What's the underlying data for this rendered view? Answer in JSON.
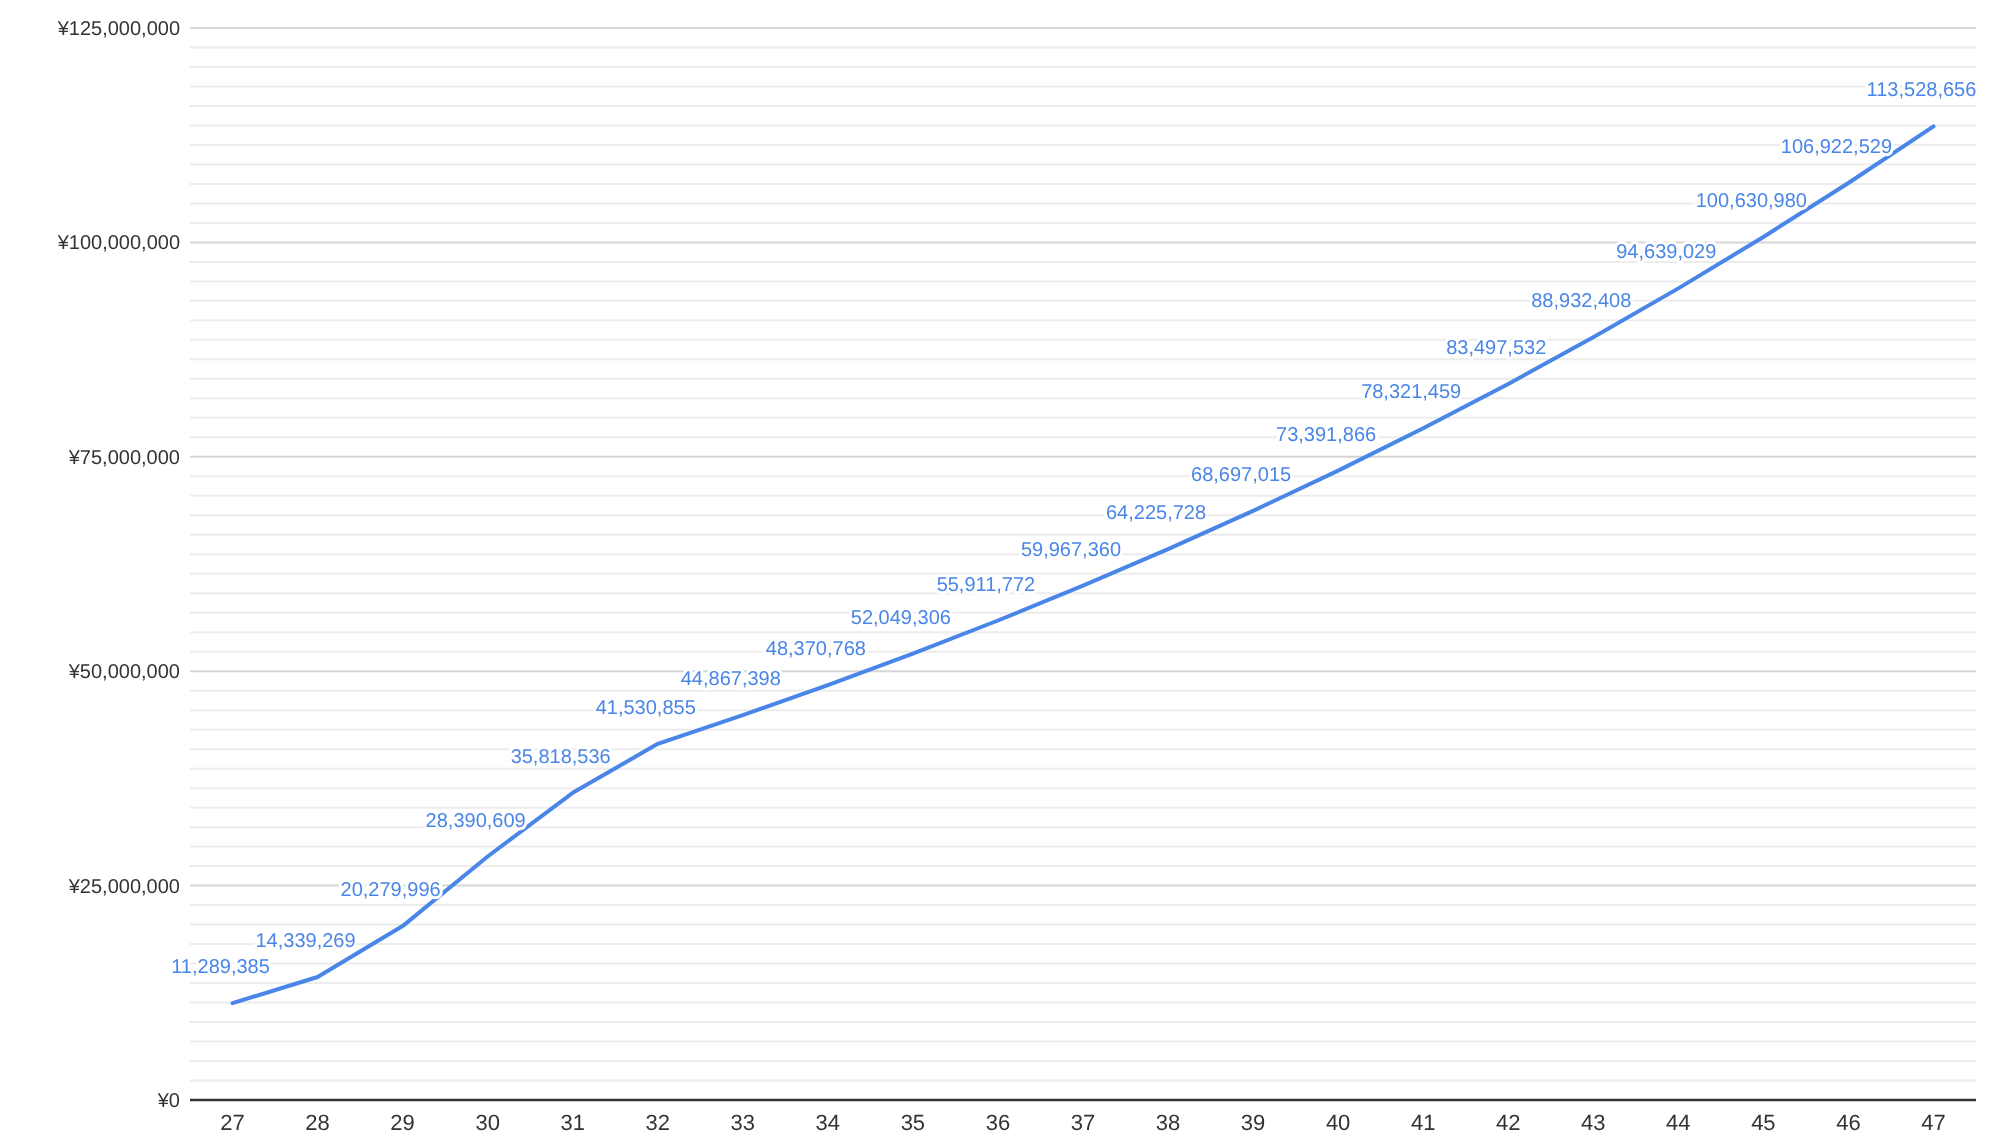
{
  "chart_data": {
    "type": "line",
    "categories": [
      "27",
      "28",
      "29",
      "30",
      "31",
      "32",
      "33",
      "34",
      "35",
      "36",
      "37",
      "38",
      "39",
      "40",
      "41",
      "42",
      "43",
      "44",
      "45",
      "46",
      "47"
    ],
    "series": [
      {
        "color": "#4a86e8",
        "values": [
          11289385,
          14339269,
          20279996,
          28390609,
          35818536,
          41530855,
          44867398,
          48370768,
          52049306,
          55911772,
          59967360,
          64225728,
          68697015,
          73391866,
          78321459,
          83497532,
          88932408,
          94639029,
          100630980,
          106922529,
          113528656
        ],
        "value_labels": [
          "11,289,385",
          "14,339,269",
          "20,279,996",
          "28,390,609",
          "35,818,536",
          "41,530,855",
          "44,867,398",
          "48,370,768",
          "52,049,306",
          "55,911,772",
          "59,967,360",
          "64,225,728",
          "68,697,015",
          "73,391,866",
          "78,321,459",
          "83,497,532",
          "88,932,408",
          "94,639,029",
          "100,630,980",
          "106,922,529",
          "113,528,656"
        ]
      }
    ],
    "ylim": [
      0,
      125000000
    ],
    "yticks": [
      {
        "value": 0,
        "label": "¥0"
      },
      {
        "value": 2272727,
        "label": null
      },
      {
        "value": 4545455,
        "label": null
      },
      {
        "value": 6818182,
        "label": null
      },
      {
        "value": 9090909,
        "label": null
      },
      {
        "value": 11363636,
        "label": null
      },
      {
        "value": 13636364,
        "label": null
      },
      {
        "value": 15909091,
        "label": null
      },
      {
        "value": 18181818,
        "label": null
      },
      {
        "value": 20454545,
        "label": null
      },
      {
        "value": 22727273,
        "label": null
      },
      {
        "value": 25000000,
        "label": "¥25,000,000"
      },
      {
        "value": 27272727,
        "label": null
      },
      {
        "value": 29545455,
        "label": null
      },
      {
        "value": 31818182,
        "label": null
      },
      {
        "value": 34090909,
        "label": null
      },
      {
        "value": 36363636,
        "label": null
      },
      {
        "value": 38636364,
        "label": null
      },
      {
        "value": 40909091,
        "label": null
      },
      {
        "value": 43181818,
        "label": null
      },
      {
        "value": 45454545,
        "label": null
      },
      {
        "value": 47727273,
        "label": null
      },
      {
        "value": 50000000,
        "label": "¥50,000,000"
      },
      {
        "value": 52272727,
        "label": null
      },
      {
        "value": 54545455,
        "label": null
      },
      {
        "value": 56818182,
        "label": null
      },
      {
        "value": 59090909,
        "label": null
      },
      {
        "value": 61363636,
        "label": null
      },
      {
        "value": 63636364,
        "label": null
      },
      {
        "value": 65909091,
        "label": null
      },
      {
        "value": 68181818,
        "label": null
      },
      {
        "value": 70454545,
        "label": null
      },
      {
        "value": 72727273,
        "label": null
      },
      {
        "value": 75000000,
        "label": "¥75,000,000"
      },
      {
        "value": 77272727,
        "label": null
      },
      {
        "value": 79545455,
        "label": null
      },
      {
        "value": 81818182,
        "label": null
      },
      {
        "value": 84090909,
        "label": null
      },
      {
        "value": 86363636,
        "label": null
      },
      {
        "value": 88636364,
        "label": null
      },
      {
        "value": 90909091,
        "label": null
      },
      {
        "value": 93181818,
        "label": null
      },
      {
        "value": 95454545,
        "label": null
      },
      {
        "value": 97727273,
        "label": null
      },
      {
        "value": 100000000,
        "label": "¥100,000,000"
      },
      {
        "value": 102272727,
        "label": null
      },
      {
        "value": 104545455,
        "label": null
      },
      {
        "value": 106818182,
        "label": null
      },
      {
        "value": 109090909,
        "label": null
      },
      {
        "value": 111363636,
        "label": null
      },
      {
        "value": 113636364,
        "label": null
      },
      {
        "value": 115909091,
        "label": null
      },
      {
        "value": 118181818,
        "label": null
      },
      {
        "value": 120454545,
        "label": null
      },
      {
        "value": 122727273,
        "label": null
      },
      {
        "value": 125000000,
        "label": "¥125,000,000"
      }
    ],
    "grid": "y"
  }
}
